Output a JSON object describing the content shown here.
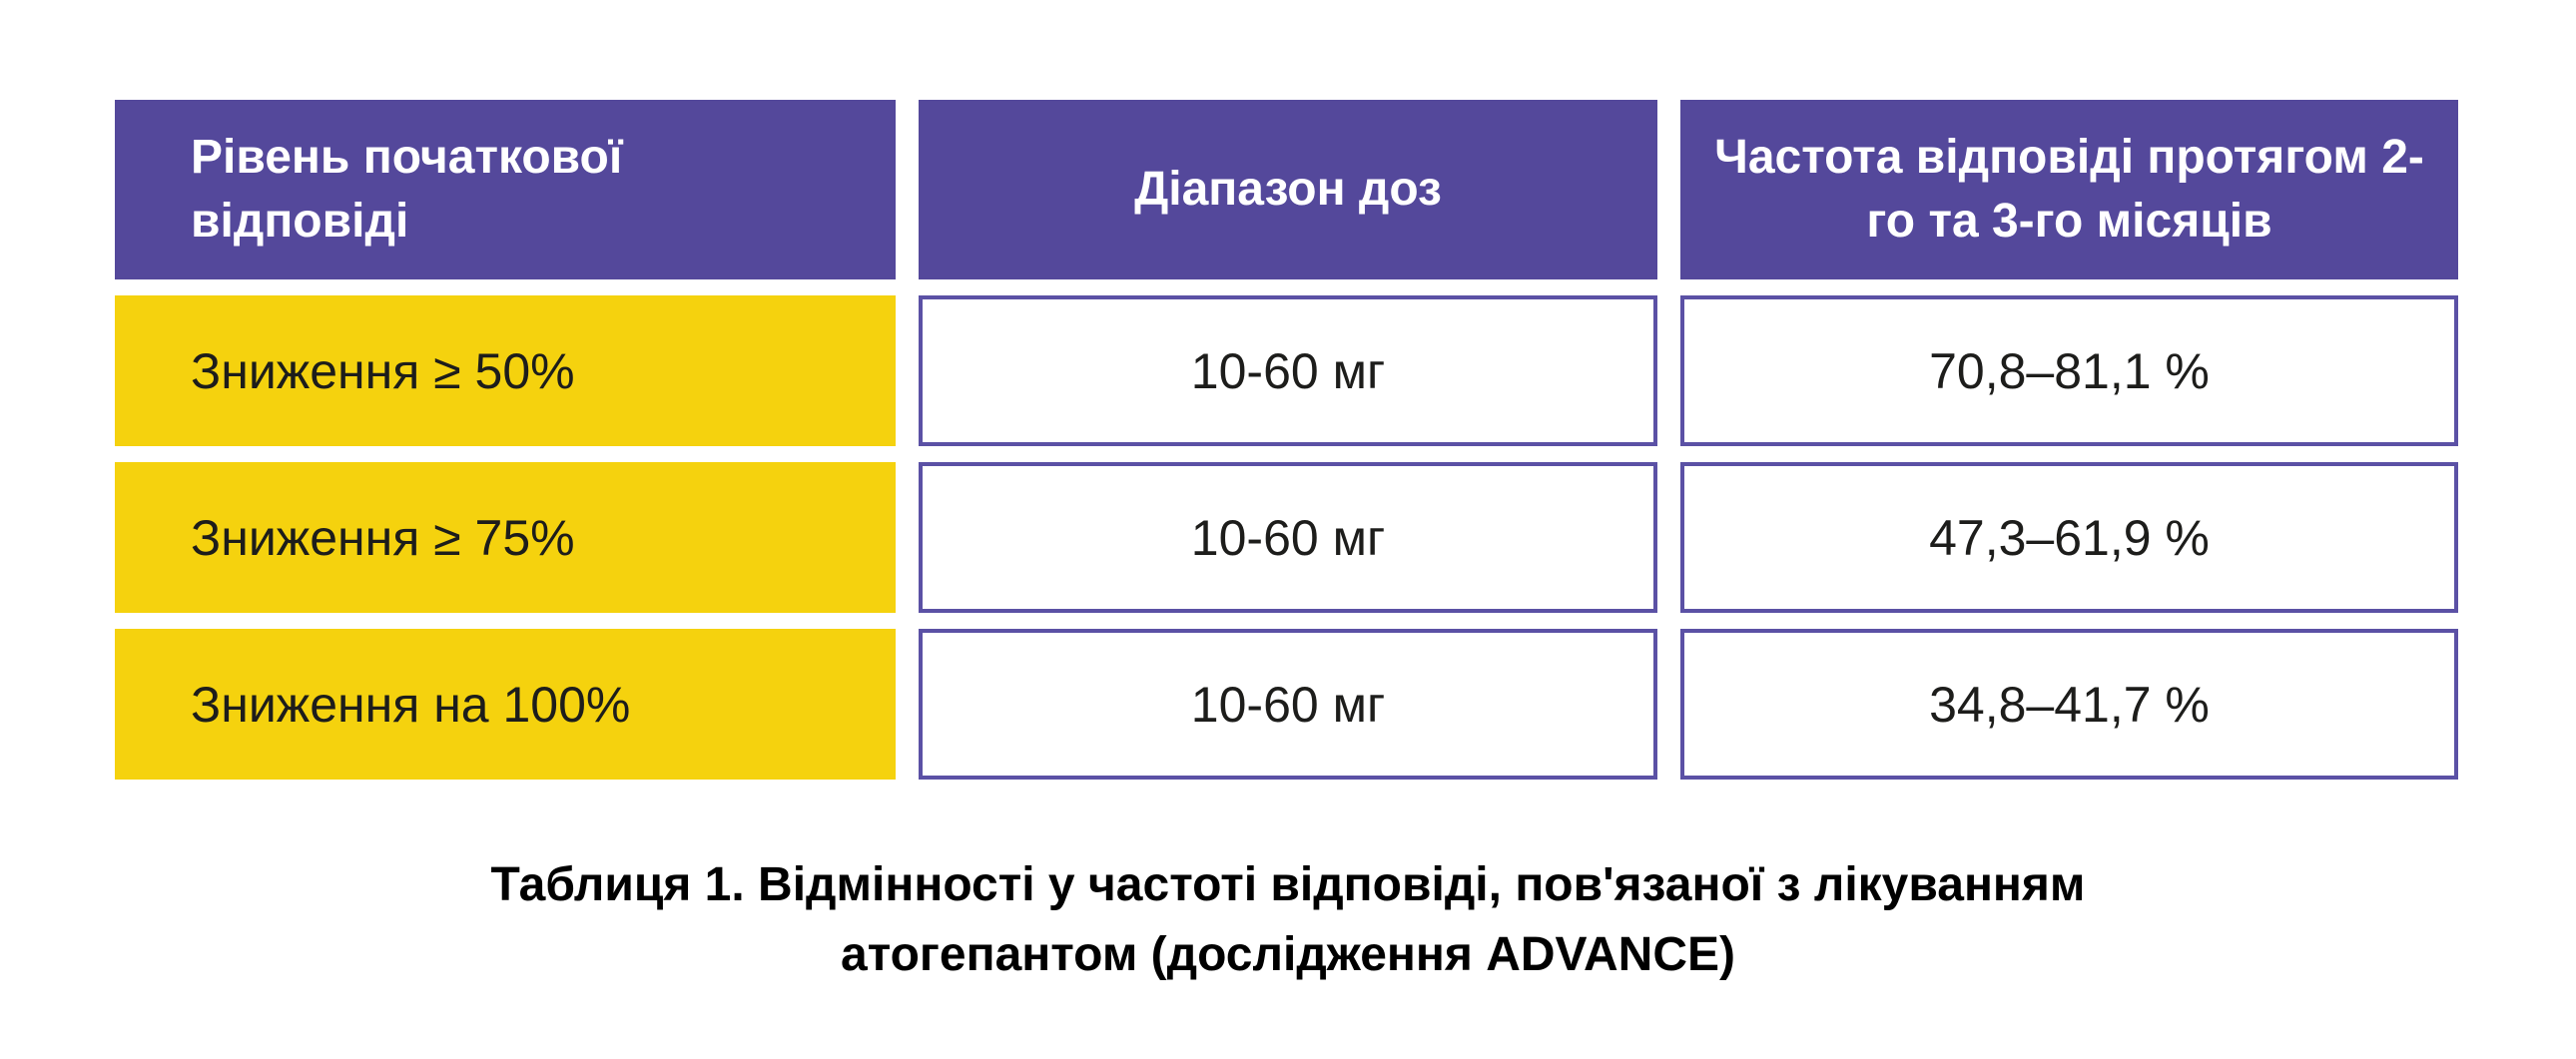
{
  "colors": {
    "header_bg": "#54489B",
    "header_text": "#FFFFFF",
    "row_label_bg": "#F5D20E",
    "cell_border": "#5B51A5",
    "body_text": "#1D1D1B"
  },
  "table": {
    "columns": [
      {
        "label": "Рівень початкової відповіді"
      },
      {
        "label": "Діапазон доз"
      },
      {
        "label": "Частота відповіді протягом 2-го та 3-го місяців"
      }
    ],
    "rows": [
      {
        "level": "Зниження ≥ 50%",
        "dose_range": "10-60 мг",
        "response_rate": "70,8–81,1 %"
      },
      {
        "level": "Зниження ≥ 75%",
        "dose_range": "10-60 мг",
        "response_rate": "47,3–61,9 %"
      },
      {
        "level": "Зниження на 100%",
        "dose_range": "10-60 мг",
        "response_rate": "34,8–41,7 %"
      }
    ]
  },
  "caption": {
    "line1": "Таблиця 1. Відмінності у частоті відповіді, пов'язаної з лікуванням",
    "line2": "атогепантом (дослідження ADVANCE)"
  }
}
